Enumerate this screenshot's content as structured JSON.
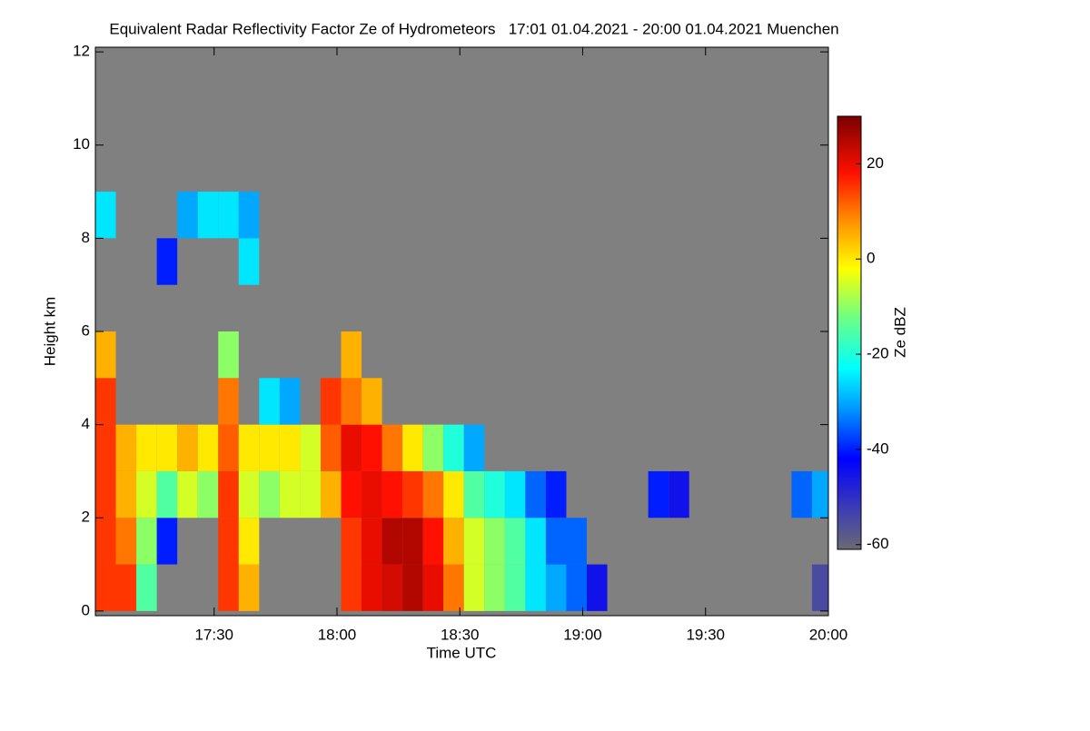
{
  "chart_data": {
    "type": "heatmap",
    "title": "Equivalent Radar Reflectivity Factor Ze of Hydrometeors   17:01 01.04.2021 - 20:00 01.04.2021 Muenchen",
    "xlabel": "Time UTC",
    "ylabel": "Height km",
    "zlabel": "Ze dBZ",
    "background": "#808080",
    "xlim": [
      1021,
      1200
    ],
    "ylim": [
      -0.1,
      12.1
    ],
    "zlim": [
      -61,
      30
    ],
    "xticks": [
      {
        "value": 1050,
        "label": "17:30"
      },
      {
        "value": 1080,
        "label": "18:00"
      },
      {
        "value": 1110,
        "label": "18:30"
      },
      {
        "value": 1140,
        "label": "19:00"
      },
      {
        "value": 1170,
        "label": "19:30"
      },
      {
        "value": 1200,
        "label": "20:00"
      }
    ],
    "yticks": [
      0,
      2,
      4,
      6,
      8,
      10,
      12
    ],
    "zticks": [
      -60,
      -40,
      -20,
      0,
      20
    ],
    "colormap": [
      {
        "value": -61,
        "color": "#6a6a74"
      },
      {
        "value": -52,
        "color": "#3a3ab8"
      },
      {
        "value": -42,
        "color": "#0000ff"
      },
      {
        "value": -32,
        "color": "#0090ff"
      },
      {
        "value": -23,
        "color": "#00ffff"
      },
      {
        "value": -12,
        "color": "#70ff80"
      },
      {
        "value": -2,
        "color": "#ffff00"
      },
      {
        "value": 8,
        "color": "#ff9000"
      },
      {
        "value": 18,
        "color": "#ff1000"
      },
      {
        "value": 30,
        "color": "#7a0000"
      }
    ],
    "x": [
      1023.5,
      1028.5,
      1033.5,
      1038.5,
      1043.5,
      1048.5,
      1053.5,
      1058.5,
      1063.5,
      1068.5,
      1073.5,
      1078.5,
      1083.5,
      1088.5,
      1093.5,
      1098.5,
      1103.5,
      1108.5,
      1113.5,
      1118.5,
      1123.5,
      1128.5,
      1133.5,
      1138.5,
      1143.5,
      1148.5,
      1153.5,
      1158.5,
      1163.5,
      1168.5,
      1173.5,
      1178.5,
      1183.5,
      1188.5,
      1193.5,
      1198.5
    ],
    "y": [
      0.5,
      1.5,
      2.5,
      3.5,
      4.5,
      5.5,
      6.5,
      7.5,
      8.5,
      9.5,
      10.5,
      11.5
    ],
    "z": [
      [
        15,
        15,
        -15,
        null,
        null,
        null,
        15,
        5,
        null,
        null,
        null,
        null,
        15,
        20,
        22,
        25,
        20,
        10,
        -5,
        -10,
        -15,
        -25,
        -30,
        -35,
        -45,
        null,
        null,
        null,
        null,
        null,
        null,
        null,
        null,
        null,
        null,
        -55
      ],
      [
        15,
        10,
        -10,
        -40,
        null,
        null,
        15,
        0,
        null,
        null,
        null,
        null,
        15,
        20,
        25,
        25,
        18,
        5,
        -5,
        -10,
        -15,
        -25,
        -35,
        -35,
        null,
        null,
        null,
        null,
        null,
        null,
        null,
        null,
        null,
        null,
        null,
        null
      ],
      [
        15,
        5,
        -5,
        -15,
        -5,
        -10,
        15,
        -5,
        -10,
        -5,
        -5,
        5,
        18,
        20,
        18,
        15,
        10,
        0,
        -15,
        -20,
        -25,
        -35,
        -40,
        null,
        null,
        null,
        null,
        -40,
        -45,
        null,
        null,
        null,
        null,
        null,
        -35,
        -30
      ],
      [
        15,
        5,
        0,
        0,
        5,
        0,
        12,
        0,
        0,
        0,
        -5,
        12,
        20,
        18,
        10,
        0,
        -10,
        -20,
        -30,
        null,
        null,
        null,
        null,
        null,
        null,
        null,
        null,
        null,
        null,
        null,
        null,
        null,
        null,
        null,
        null,
        null
      ],
      [
        15,
        null,
        null,
        null,
        null,
        null,
        10,
        null,
        -25,
        -30,
        null,
        15,
        10,
        5,
        null,
        null,
        null,
        null,
        null,
        null,
        null,
        null,
        null,
        null,
        null,
        null,
        null,
        null,
        null,
        null,
        null,
        null,
        null,
        null,
        null,
        null
      ],
      [
        5,
        null,
        null,
        null,
        null,
        null,
        -10,
        null,
        null,
        null,
        null,
        null,
        5,
        null,
        null,
        null,
        null,
        null,
        null,
        null,
        null,
        null,
        null,
        null,
        null,
        null,
        null,
        null,
        null,
        null,
        null,
        null,
        null,
        null,
        null,
        null
      ],
      [
        null,
        null,
        null,
        null,
        null,
        null,
        null,
        null,
        null,
        null,
        null,
        null,
        null,
        null,
        null,
        null,
        null,
        null,
        null,
        null,
        null,
        null,
        null,
        null,
        null,
        null,
        null,
        null,
        null,
        null,
        null,
        null,
        null,
        null,
        null,
        null
      ],
      [
        null,
        null,
        null,
        -40,
        null,
        null,
        null,
        -25,
        null,
        null,
        null,
        null,
        null,
        null,
        null,
        null,
        null,
        null,
        null,
        null,
        null,
        null,
        null,
        null,
        null,
        null,
        null,
        null,
        null,
        null,
        null,
        null,
        null,
        null,
        null,
        null
      ],
      [
        -25,
        null,
        null,
        null,
        -30,
        -25,
        -25,
        -30,
        null,
        null,
        null,
        null,
        null,
        null,
        null,
        null,
        null,
        null,
        null,
        null,
        null,
        null,
        null,
        null,
        null,
        null,
        null,
        null,
        null,
        null,
        null,
        null,
        null,
        null,
        null,
        null
      ],
      [
        null,
        null,
        null,
        null,
        null,
        null,
        null,
        null,
        null,
        null,
        null,
        null,
        null,
        null,
        null,
        null,
        null,
        null,
        null,
        null,
        null,
        null,
        null,
        null,
        null,
        null,
        null,
        null,
        null,
        null,
        null,
        null,
        null,
        null,
        null,
        null
      ],
      [
        null,
        null,
        null,
        null,
        null,
        null,
        null,
        null,
        null,
        null,
        null,
        null,
        null,
        null,
        null,
        null,
        null,
        null,
        null,
        null,
        null,
        null,
        null,
        null,
        null,
        null,
        null,
        null,
        null,
        null,
        null,
        null,
        null,
        null,
        null,
        null
      ],
      [
        null,
        null,
        null,
        null,
        null,
        null,
        null,
        null,
        null,
        null,
        null,
        null,
        null,
        null,
        null,
        null,
        null,
        null,
        null,
        null,
        null,
        null,
        null,
        null,
        null,
        null,
        null,
        null,
        null,
        null,
        null,
        null,
        null,
        null,
        null,
        null
      ]
    ]
  }
}
